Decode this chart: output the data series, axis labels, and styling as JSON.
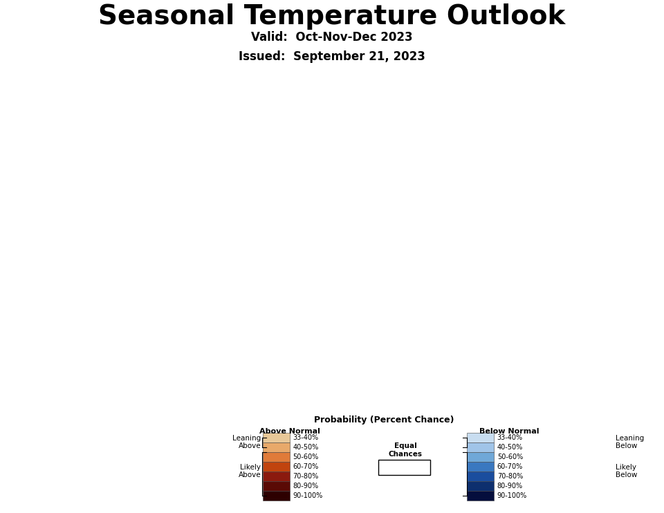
{
  "title": "Seasonal Temperature Outlook",
  "valid_text": "Valid:  Oct-Nov-Dec 2023",
  "issued_text": "Issued:  September 21, 2023",
  "background_color": "#ffffff",
  "title_fontsize": 28,
  "subtitle_fontsize": 12,
  "state_colors": {
    "Washington": "#c1440e",
    "Oregon": "#c1440e",
    "California": "#e07b39",
    "Nevada": "#e8a96a",
    "Idaho": "#e8a96a",
    "Utah": "#e8a96a",
    "Arizona": "#e8a96a",
    "Montana": "#e8a96a",
    "Wyoming": "#ffffff",
    "Colorado": "#ffffff",
    "New Mexico": "#e8a96a",
    "North Dakota": "#ffffff",
    "South Dakota": "#ffffff",
    "Nebraska": "#ffffff",
    "Kansas": "#ffffff",
    "Oklahoma": "#ffffff",
    "Texas": "#e8a96a",
    "Minnesota": "#e8c898",
    "Iowa": "#ffffff",
    "Missouri": "#ffffff",
    "Wisconsin": "#e8c898",
    "Illinois": "#ffffff",
    "Michigan": "#e8c898",
    "Indiana": "#ffffff",
    "Ohio": "#ffffff",
    "Kentucky": "#ffffff",
    "Tennessee": "#ffffff",
    "Arkansas": "#ffffff",
    "Louisiana": "#e8a96a",
    "Mississippi": "#e8a96a",
    "Alabama": "#e8a96a",
    "Georgia": "#e8a96a",
    "Florida": "#e8a96a",
    "South Carolina": "#e8a96a",
    "North Carolina": "#e8a96a",
    "Virginia": "#e8a96a",
    "West Virginia": "#ffffff",
    "Maryland": "#e8a96a",
    "Delaware": "#e8a96a",
    "New Jersey": "#e8a96a",
    "Pennsylvania": "#e8c898",
    "New York": "#e8a96a",
    "Connecticut": "#e07b39",
    "Rhode Island": "#e07b39",
    "Massachusetts": "#e07b39",
    "Vermont": "#e07b39",
    "New Hampshire": "#e07b39",
    "Maine": "#c1440e",
    "Alaska_south": "#e8a96a",
    "Alaska_north": "#c1440e"
  },
  "legend_above_colors": [
    "#e8c898",
    "#e8a96a",
    "#e07b39",
    "#c1440e",
    "#8b1a0e",
    "#5a0a05",
    "#2d0000"
  ],
  "legend_below_colors": [
    "#c8ddf0",
    "#a0c4e8",
    "#70a8d8",
    "#3a78c0",
    "#1a4d9e",
    "#0d2f6e",
    "#050e3d"
  ],
  "legend_labels": [
    "33-40%",
    "40-50%",
    "50-60%",
    "60-70%",
    "70-80%",
    "80-90%",
    "90-100%"
  ],
  "ocean_color": "#ddeeff",
  "border_color": "#555555",
  "lake_color": "#ddeeff"
}
